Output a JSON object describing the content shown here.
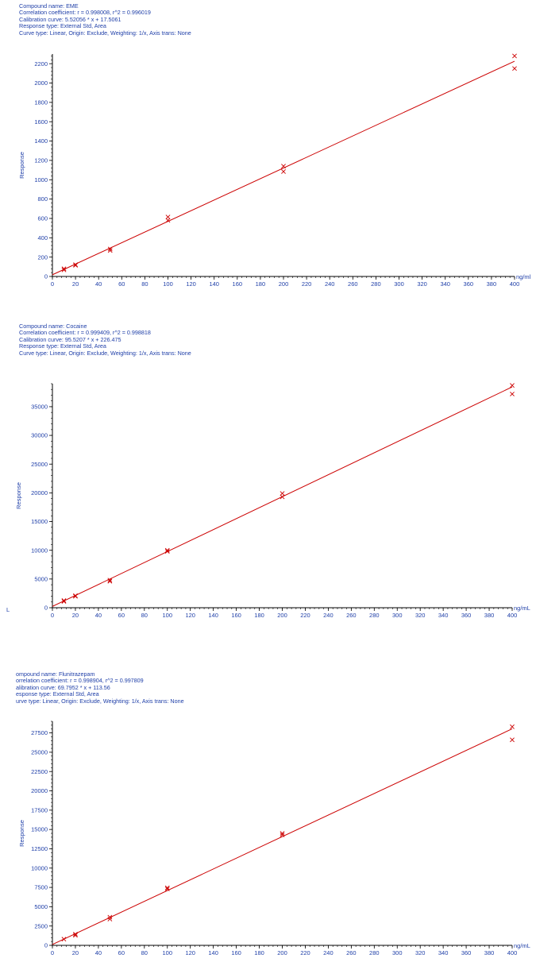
{
  "colors": {
    "text": "#1f3fa8",
    "axis": "#000000",
    "line": "#cc0000",
    "marker": "#cc0000"
  },
  "stray_label": "L",
  "chart_data": [
    {
      "type": "scatter",
      "info": [
        "Compound name: EME",
        "Correlation coefficient: r = 0.998008, r^2 = 0.996019",
        "Calibration curve: 5.52056 * x + 17.5061",
        "Response type: External Std, Area",
        "Curve type: Linear, Origin: Exclude, Weighting: 1/x, Axis trans: None"
      ],
      "ylabel": "Response",
      "xlabel": "ng/ml",
      "xlim": [
        0,
        400
      ],
      "ylim": [
        0,
        2300
      ],
      "xticks": [
        0,
        20,
        40,
        60,
        80,
        100,
        120,
        140,
        160,
        180,
        200,
        220,
        240,
        260,
        280,
        300,
        320,
        340,
        360,
        380,
        400
      ],
      "xtick_labels": [
        "0",
        "20",
        "40",
        "60",
        "80",
        "100",
        "120",
        "140",
        "160",
        "180",
        "200",
        "220",
        "240",
        "260",
        "280",
        "300",
        "320",
        "340",
        "360",
        "380",
        "400"
      ],
      "yticks": [
        0,
        200,
        400,
        600,
        800,
        1000,
        1200,
        1400,
        1600,
        1800,
        2000,
        2200
      ],
      "ytick_labels": [
        "0",
        "200",
        "400",
        "600",
        "800",
        "1000",
        "1200",
        "1400",
        "1600",
        "1800",
        "2000",
        "2200"
      ],
      "points": [
        {
          "x": 10,
          "y": 68
        },
        {
          "x": 10,
          "y": 80
        },
        {
          "x": 20,
          "y": 115
        },
        {
          "x": 20,
          "y": 122
        },
        {
          "x": 50,
          "y": 268
        },
        {
          "x": 50,
          "y": 284
        },
        {
          "x": 100,
          "y": 580
        },
        {
          "x": 100,
          "y": 615
        },
        {
          "x": 200,
          "y": 1085
        },
        {
          "x": 200,
          "y": 1140
        },
        {
          "x": 400,
          "y": 2150
        },
        {
          "x": 400,
          "y": 2280
        }
      ],
      "fit": {
        "slope": 5.52056,
        "intercept": 17.5061
      }
    },
    {
      "type": "scatter",
      "info": [
        "Compound name: Cocaine",
        "Correlation coefficient: r = 0.999409, r^2 = 0.998818",
        "Calibration curve: 95.5207 * x + 226.475",
        "Response type: External Std, Area",
        "Curve type: Linear, Origin: Exclude, Weighting: 1/x, Axis trans: None"
      ],
      "ylabel": "Response",
      "xlabel": "ng/mL",
      "xlim": [
        0,
        400
      ],
      "ylim": [
        0,
        39000
      ],
      "xticks": [
        0,
        20,
        40,
        60,
        80,
        100,
        120,
        140,
        160,
        180,
        200,
        220,
        240,
        260,
        280,
        300,
        320,
        340,
        360,
        380,
        400
      ],
      "xtick_labels": [
        "0",
        "20",
        "40",
        "60",
        "80",
        "100",
        "120",
        "140",
        "160",
        "180",
        "200",
        "220",
        "240",
        "260",
        "280",
        "300",
        "320",
        "340",
        "360",
        "380",
        "400"
      ],
      "yticks": [
        0,
        5000,
        10000,
        15000,
        20000,
        25000,
        30000,
        35000
      ],
      "ytick_labels": [
        "0",
        "5000",
        "10000",
        "15000",
        "20000",
        "25000",
        "30000",
        "35000"
      ],
      "points": [
        {
          "x": 10,
          "y": 1100
        },
        {
          "x": 10,
          "y": 1250
        },
        {
          "x": 20,
          "y": 2000
        },
        {
          "x": 20,
          "y": 2100
        },
        {
          "x": 50,
          "y": 4600
        },
        {
          "x": 50,
          "y": 4800
        },
        {
          "x": 100,
          "y": 9800
        },
        {
          "x": 100,
          "y": 10000
        },
        {
          "x": 200,
          "y": 19300
        },
        {
          "x": 200,
          "y": 19900
        },
        {
          "x": 400,
          "y": 37200
        },
        {
          "x": 400,
          "y": 38700
        }
      ],
      "fit": {
        "slope": 95.5207,
        "intercept": 226.475
      }
    },
    {
      "type": "scatter",
      "info": [
        "ompound name: Flunitrazepam",
        "orrelation coefficient: r = 0.998904, r^2 = 0.997809",
        "alibration curve: 69.7952 * x + 113.56",
        "esponse type: External Std, Area",
        "urve type: Linear, Origin: Exclude, Weighting: 1/x, Axis trans: None"
      ],
      "ylabel": "Response",
      "xlabel": "ng/mL",
      "xlim": [
        0,
        400
      ],
      "ylim": [
        0,
        29000
      ],
      "xticks": [
        0,
        20,
        40,
        60,
        80,
        100,
        120,
        140,
        160,
        180,
        200,
        220,
        240,
        260,
        280,
        300,
        320,
        340,
        360,
        380,
        400
      ],
      "xtick_labels": [
        "0",
        "20",
        "40",
        "60",
        "80",
        "100",
        "120",
        "140",
        "160",
        "180",
        "200",
        "220",
        "240",
        "260",
        "280",
        "300",
        "320",
        "340",
        "360",
        "380",
        "400"
      ],
      "yticks": [
        0,
        2500,
        5000,
        7500,
        10000,
        12500,
        15000,
        17500,
        20000,
        22500,
        25000,
        27500
      ],
      "ytick_labels": [
        "0",
        "2500",
        "5000",
        "7500",
        "10000",
        "12500",
        "15000",
        "17500",
        "20000",
        "22500",
        "25000",
        "27500"
      ],
      "points": [
        {
          "x": 10,
          "y": 800
        },
        {
          "x": 20,
          "y": 1300
        },
        {
          "x": 20,
          "y": 1450
        },
        {
          "x": 50,
          "y": 3400
        },
        {
          "x": 50,
          "y": 3650
        },
        {
          "x": 100,
          "y": 7300
        },
        {
          "x": 100,
          "y": 7450
        },
        {
          "x": 200,
          "y": 14300
        },
        {
          "x": 200,
          "y": 14500
        },
        {
          "x": 400,
          "y": 26600
        },
        {
          "x": 400,
          "y": 28300
        }
      ],
      "fit": {
        "slope": 69.7952,
        "intercept": 113.56
      }
    }
  ]
}
